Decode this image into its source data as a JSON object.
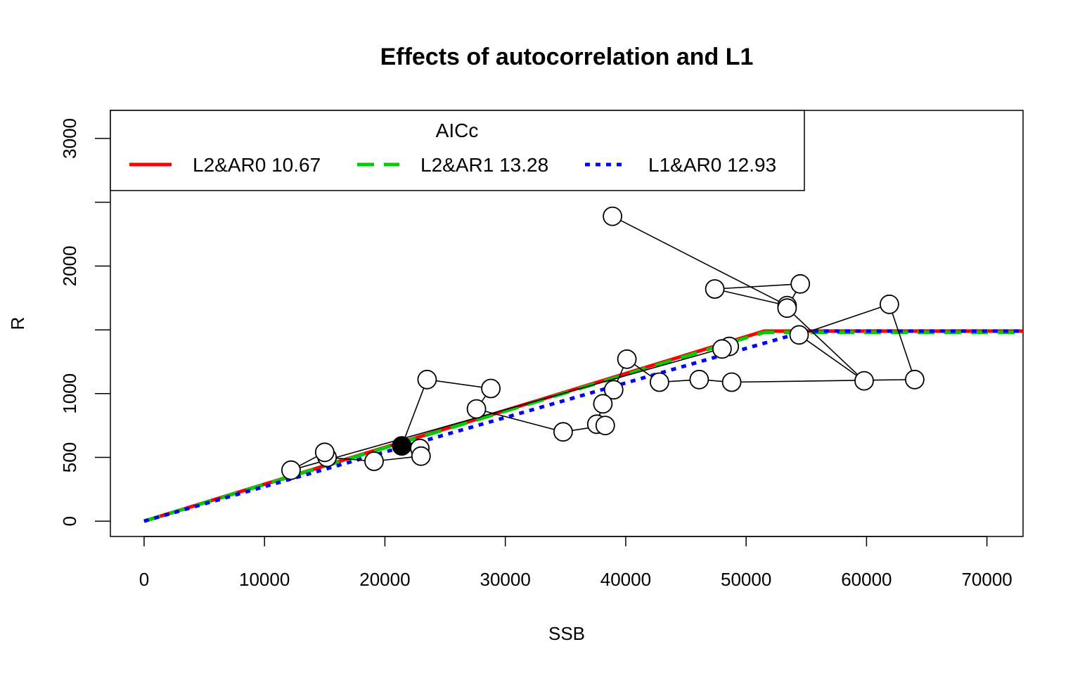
{
  "chart_data": {
    "type": "scatter",
    "title": "Effects of autocorrelation and L1",
    "xlabel": "SSB",
    "ylabel": "R",
    "xlim": [
      -2800,
      73000
    ],
    "ylim": [
      -120,
      3220
    ],
    "x_ticks": [
      0,
      10000,
      20000,
      30000,
      40000,
      50000,
      60000,
      70000
    ],
    "y_ticks": [
      0,
      500,
      1000,
      1500,
      2000,
      2500,
      3000
    ],
    "y_tick_labels": [
      "0",
      "500",
      "1000",
      "",
      "2000",
      "",
      "3000"
    ],
    "grid": false,
    "legend": {
      "title": "AICc",
      "placement": "top-left",
      "entries": [
        {
          "label": "L2&AR0 10.67",
          "color": "#ff0000",
          "style": "solid"
        },
        {
          "label": "L2&AR1 13.28",
          "color": "#00cd00",
          "style": "dashed"
        },
        {
          "label": "L1&AR0 12.93",
          "color": "#0000ff",
          "style": "dotted"
        }
      ]
    },
    "points": [
      {
        "x": 38900,
        "y": 2390
      },
      {
        "x": 53400,
        "y": 1690
      },
      {
        "x": 47400,
        "y": 1820
      },
      {
        "x": 54500,
        "y": 1860
      },
      {
        "x": 53400,
        "y": 1670
      },
      {
        "x": 59800,
        "y": 1100
      },
      {
        "x": 54400,
        "y": 1460
      },
      {
        "x": 61900,
        "y": 1700
      },
      {
        "x": 64000,
        "y": 1110
      },
      {
        "x": 48800,
        "y": 1090
      },
      {
        "x": 46100,
        "y": 1110
      },
      {
        "x": 42800,
        "y": 1090
      },
      {
        "x": 40100,
        "y": 1270
      },
      {
        "x": 39000,
        "y": 1030
      },
      {
        "x": 38100,
        "y": 920
      },
      {
        "x": 37600,
        "y": 760
      },
      {
        "x": 38300,
        "y": 750
      },
      {
        "x": 34800,
        "y": 700
      },
      {
        "x": 27600,
        "y": 880
      },
      {
        "x": 28800,
        "y": 1040
      },
      {
        "x": 23500,
        "y": 1110
      },
      {
        "x": 21400,
        "y": 590,
        "filled": true
      },
      {
        "x": 22900,
        "y": 570
      },
      {
        "x": 23000,
        "y": 510
      },
      {
        "x": 19100,
        "y": 470
      },
      {
        "x": 15200,
        "y": 500
      },
      {
        "x": 15000,
        "y": 540
      },
      {
        "x": 12200,
        "y": 400
      },
      {
        "x": 48600,
        "y": 1370
      },
      {
        "x": 48000,
        "y": 1350
      }
    ],
    "series": [
      {
        "name": "L2&AR0 10.67",
        "color": "#ff0000",
        "style": "solid",
        "x": [
          0,
          51500,
          73000
        ],
        "y": [
          0,
          1490,
          1490
        ]
      },
      {
        "name": "L2&AR1 13.28",
        "color": "#00cd00",
        "style": "dashed",
        "x": [
          0,
          51500,
          73000
        ],
        "y": [
          0,
          1480,
          1480
        ]
      },
      {
        "name": "L1&AR0 12.93",
        "color": "#0000ff",
        "style": "dotted",
        "x": [
          0,
          55000,
          73000
        ],
        "y": [
          0,
          1490,
          1490
        ]
      }
    ]
  }
}
